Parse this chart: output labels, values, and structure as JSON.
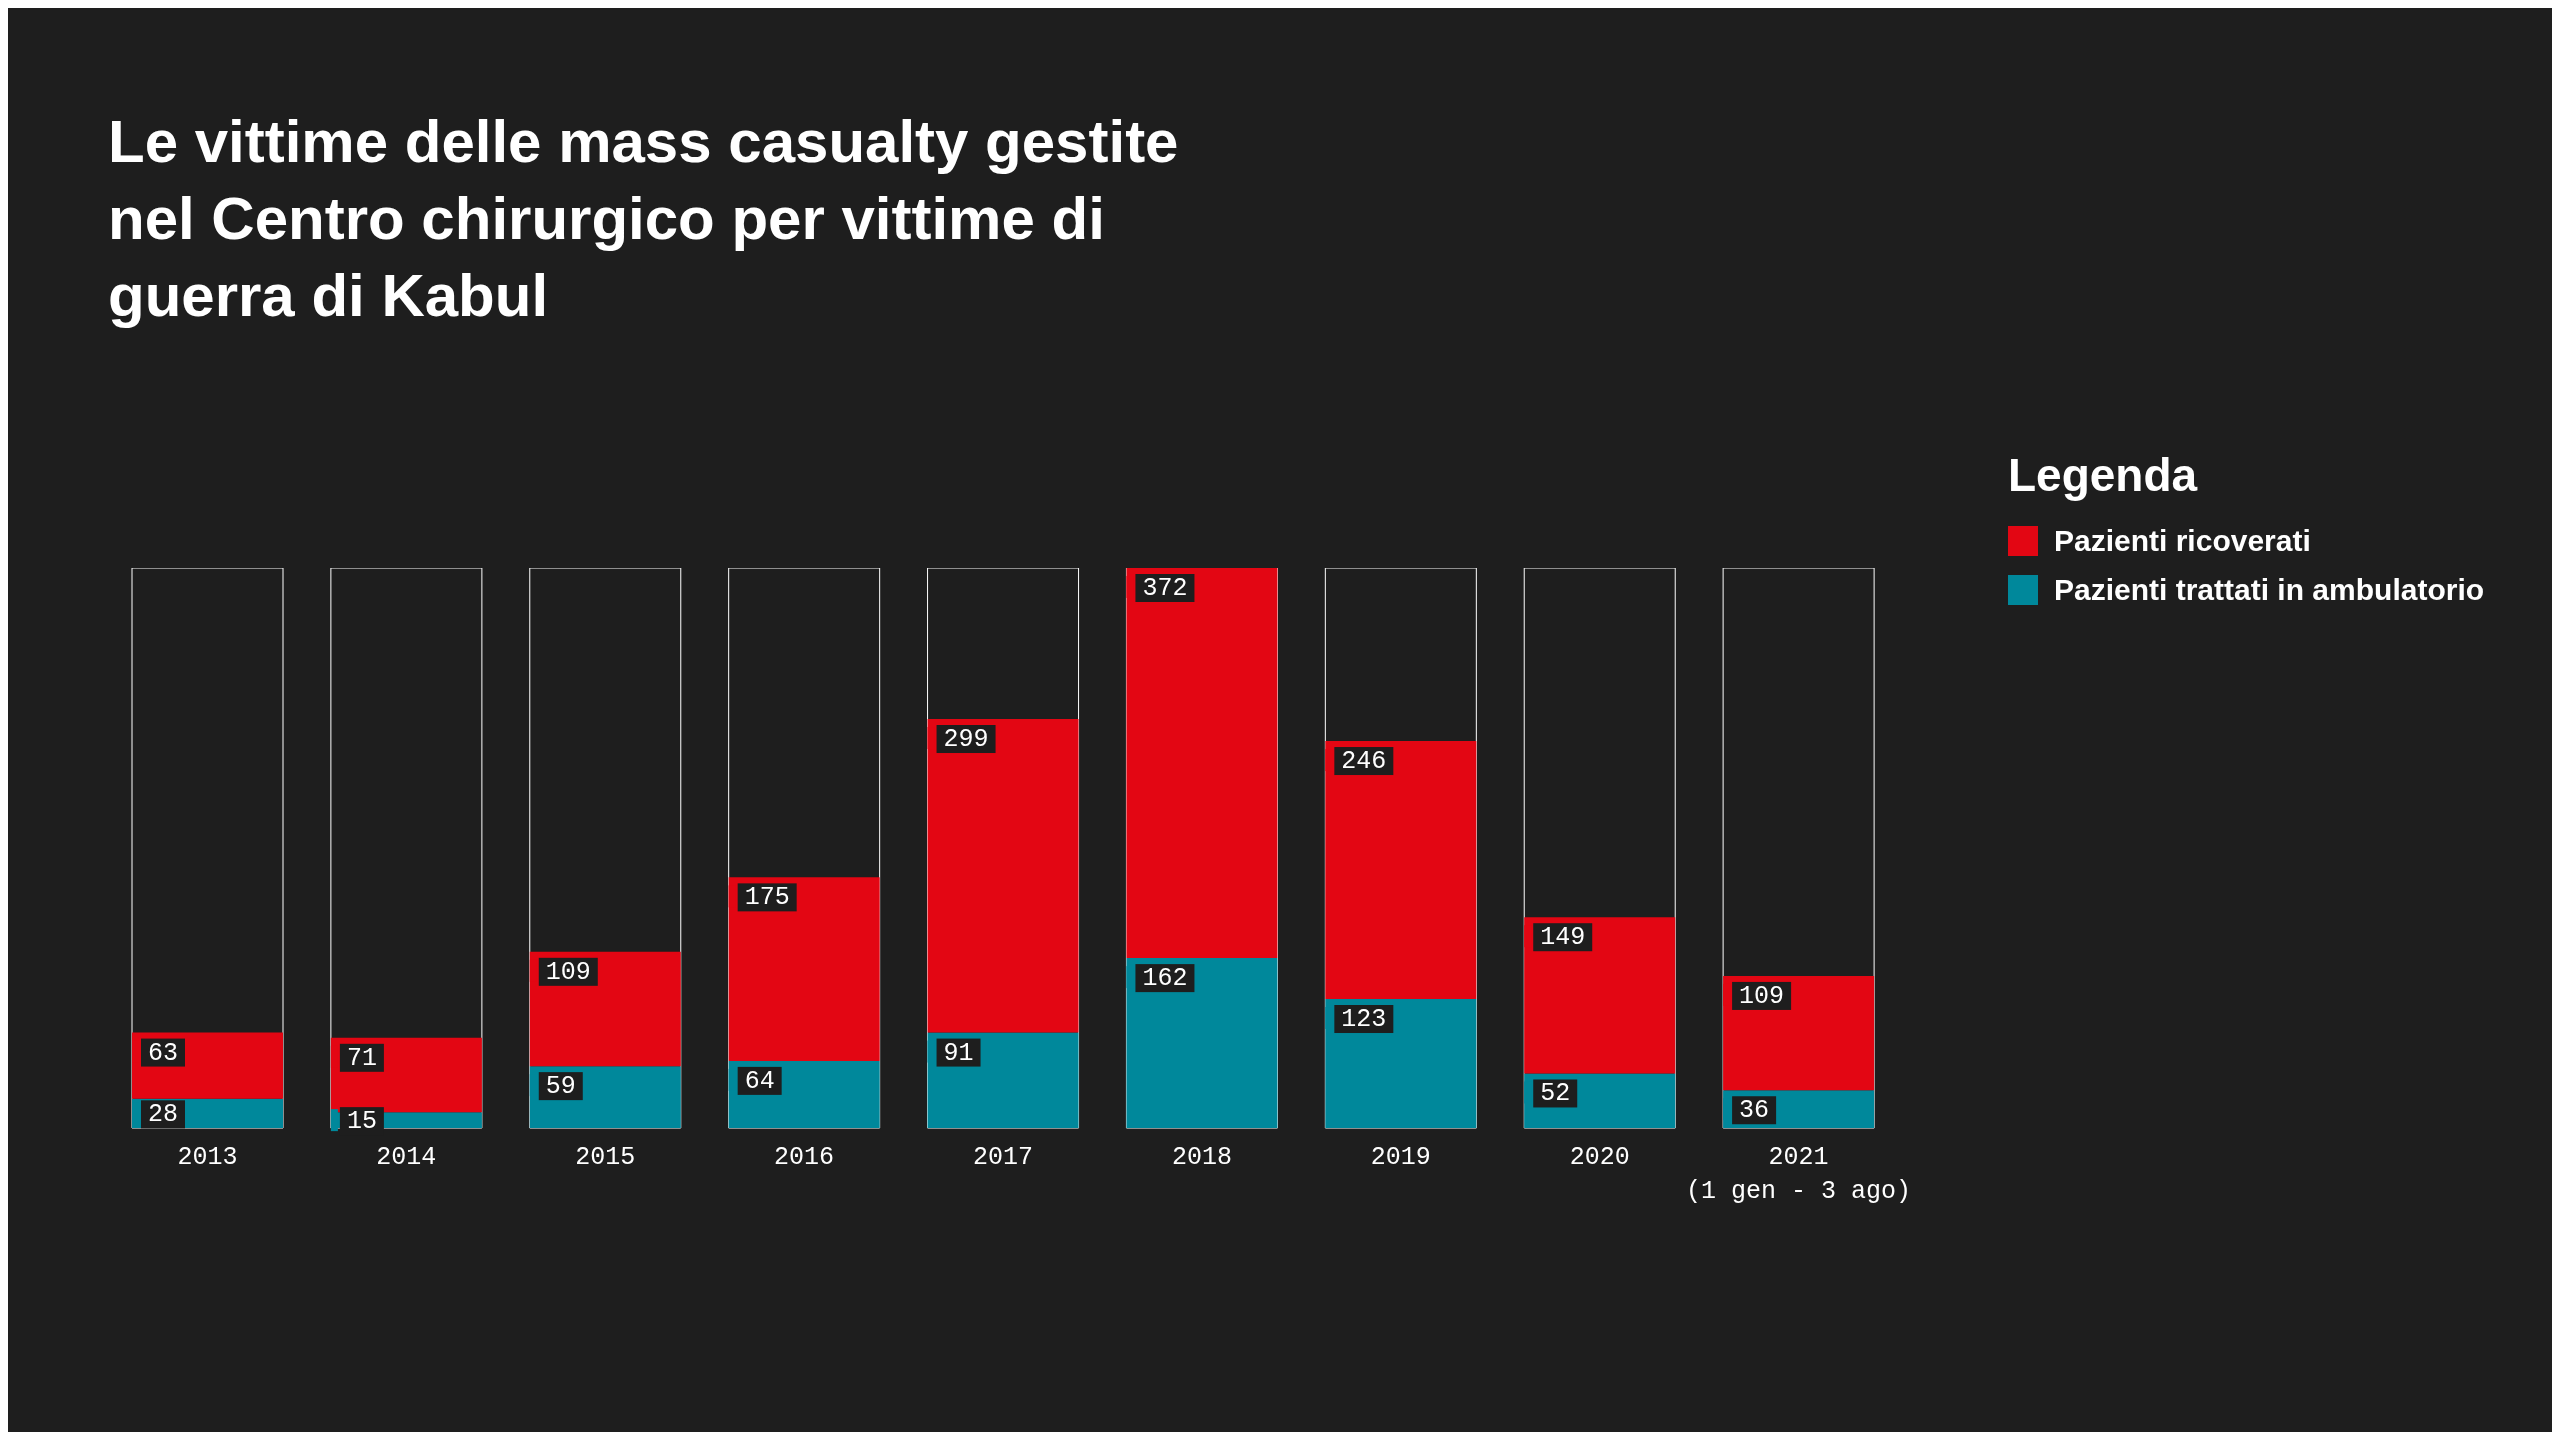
{
  "chart_data": {
    "type": "bar",
    "stacked": true,
    "title": "Le vittime delle mass casualty gestite nel Centro chirurgico per vittime di guerra di Kabul",
    "categories": [
      "2013",
      "2014",
      "2015",
      "2016",
      "2017",
      "2018",
      "2019",
      "2020",
      "2021\n(1 gen - 3 ago)"
    ],
    "tick_labels": "x",
    "data_labels": true,
    "legend": "right",
    "legend_title": "Legenda",
    "series": [
      {
        "name": "Pazienti trattati in ambulatorio",
        "color": "#00889b",
        "values": [
          28,
          15,
          59,
          64,
          91,
          162,
          123,
          52,
          36
        ]
      },
      {
        "name": "Pazienti ricoverati",
        "color": "#e30613",
        "values": [
          63,
          71,
          109,
          175,
          299,
          372,
          246,
          149,
          109
        ]
      }
    ]
  }
}
